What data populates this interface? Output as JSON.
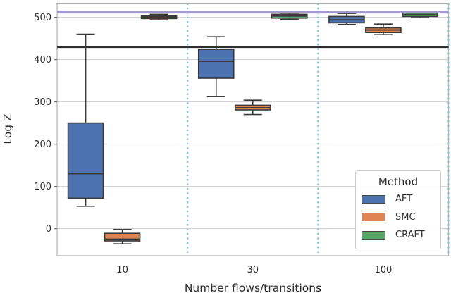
{
  "chart_data": {
    "type": "boxplot",
    "xlabel": "Number flows/transitions",
    "ylabel": "Log Z",
    "categories": [
      "10",
      "30",
      "100"
    ],
    "yticks": [
      0,
      100,
      200,
      300,
      400,
      500
    ],
    "ylim": [
      -64,
      533.5
    ],
    "grid": "horizontal",
    "legend": {
      "title": "Method",
      "position": "lower right"
    },
    "series": [
      {
        "name": "AFT",
        "color": "#4c72b0",
        "boxes": [
          {
            "whislo": 53,
            "q1": 72,
            "med": 130,
            "q3": 250,
            "whishi": 460
          },
          {
            "whislo": 313,
            "q1": 356,
            "med": 396,
            "q3": 424,
            "whishi": 454
          },
          {
            "whislo": 483,
            "q1": 487,
            "med": 494,
            "q3": 502,
            "whishi": 509
          }
        ]
      },
      {
        "name": "SMC",
        "color": "#dd8452",
        "boxes": [
          {
            "whislo": -36,
            "q1": -29,
            "med": -25,
            "q3": -11,
            "whishi": -2
          },
          {
            "whislo": 270,
            "q1": 281,
            "med": 286,
            "q3": 292,
            "whishi": 304
          },
          {
            "whislo": 459,
            "q1": 464,
            "med": 470,
            "q3": 475,
            "whishi": 484
          }
        ]
      },
      {
        "name": "CRAFT",
        "color": "#55a868",
        "boxes": [
          {
            "whislo": 494,
            "q1": 497,
            "med": 501,
            "q3": 504,
            "whishi": 507
          },
          {
            "whislo": 495,
            "q1": 498,
            "med": 503,
            "q3": 507,
            "whishi": 510
          },
          {
            "whislo": 499,
            "q1": 502,
            "med": 506,
            "q3": 510,
            "whishi": 512
          }
        ]
      }
    ],
    "reference_lines": [
      {
        "orientation": "horizontal",
        "value": 430,
        "color": "#2f2f2f",
        "width": 3
      },
      {
        "orientation": "horizontal",
        "value": 512,
        "color": "#a49ace",
        "width": 3.5
      }
    ],
    "separators": {
      "orientation": "vertical",
      "category_boundaries": [
        0.5,
        1.5,
        2.5
      ],
      "color": "#7ec5e4",
      "style": "dotted",
      "width": 2.4
    },
    "style": {
      "box_edge_color": "#3a3a3a",
      "grid_color": "#cccccc",
      "spine_color": "#b3b3b3",
      "tick_color": "#555555"
    }
  }
}
